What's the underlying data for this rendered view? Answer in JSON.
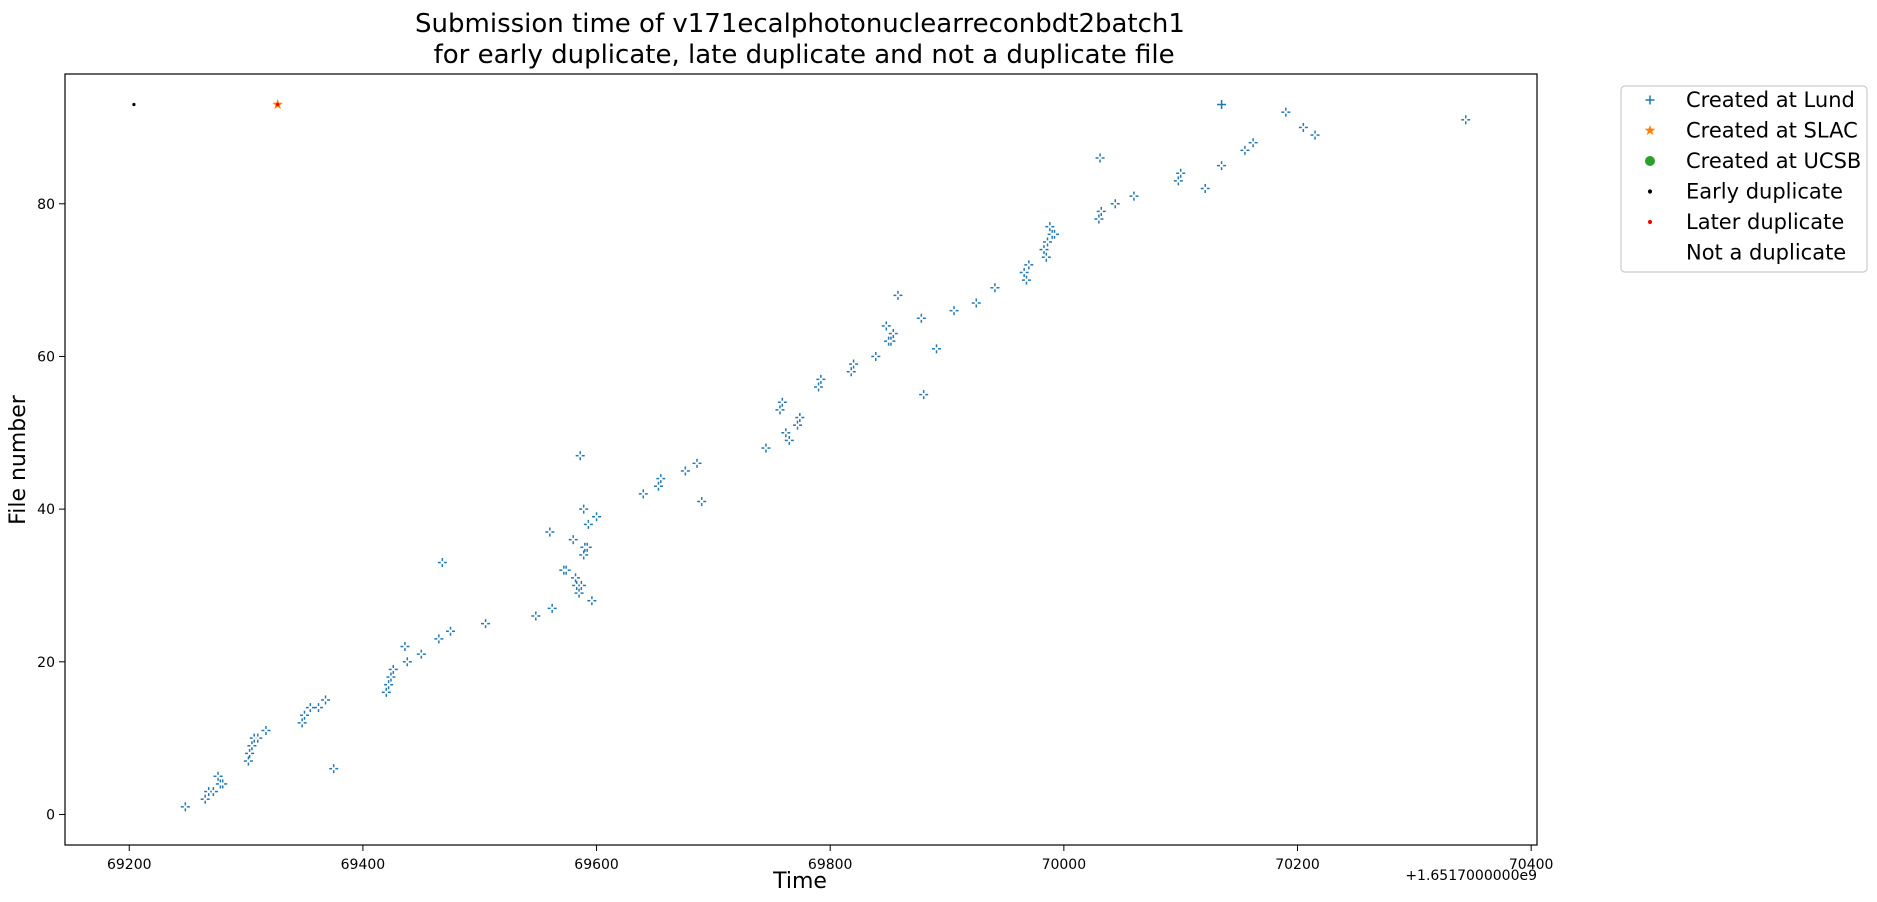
{
  "chart_data": {
    "type": "scatter",
    "title_line1": "Submission time of v171ecalphotonuclearreconbdt2batch1",
    "title_line2": " for early duplicate, late duplicate and not a duplicate file",
    "xlabel": "Time",
    "ylabel": "File number",
    "x_offset_label": "+1.6517000000e9",
    "xlim": [
      69145,
      70405
    ],
    "ylim": [
      -4,
      97
    ],
    "x_ticks": [
      69200,
      69400,
      69600,
      69800,
      70000,
      70200,
      70400
    ],
    "x_tick_labels": [
      "69200",
      "69400",
      "69600",
      "69800",
      "70000",
      "70200",
      "70400"
    ],
    "y_ticks": [
      0,
      20,
      40,
      60,
      80
    ],
    "y_tick_labels": [
      "0",
      "20",
      "40",
      "60",
      "80"
    ],
    "legend_position": "outside-top-right",
    "legend": [
      {
        "label": "Created at Lund",
        "marker": "plus",
        "color": "#1f77b4"
      },
      {
        "label": "Created at SLAC",
        "marker": "star",
        "color": "#ff7f0e"
      },
      {
        "label": "Created at UCSB",
        "marker": "circle",
        "color": "#2ca02c"
      },
      {
        "label": "Early duplicate",
        "marker": "dot",
        "color": "#000000"
      },
      {
        "label": "Later duplicate",
        "marker": "dot",
        "color": "#ff0000"
      },
      {
        "label": "Not a duplicate",
        "marker": "dot",
        "color": "#ffffff"
      }
    ],
    "series": [
      {
        "name": "Created at Lund",
        "marker": "plus",
        "color": "#1f77b4",
        "points": [
          [
            69248,
            1
          ],
          [
            69265,
            2
          ],
          [
            69268,
            3
          ],
          [
            69272,
            3
          ],
          [
            69276,
            5
          ],
          [
            69278,
            4
          ],
          [
            69280,
            4
          ],
          [
            69302,
            7
          ],
          [
            69303,
            8
          ],
          [
            69305,
            9
          ],
          [
            69307,
            10
          ],
          [
            69310,
            10
          ],
          [
            69317,
            11
          ],
          [
            69348,
            12
          ],
          [
            69350,
            13
          ],
          [
            69355,
            14
          ],
          [
            69362,
            14
          ],
          [
            69368,
            15
          ],
          [
            69375,
            6
          ],
          [
            69420,
            16
          ],
          [
            69422,
            17
          ],
          [
            69424,
            18
          ],
          [
            69426,
            19
          ],
          [
            69436,
            22
          ],
          [
            69438,
            20
          ],
          [
            69450,
            21
          ],
          [
            69465,
            23
          ],
          [
            69468,
            33
          ],
          [
            69475,
            24
          ],
          [
            69505,
            25
          ],
          [
            69548,
            26
          ],
          [
            69560,
            37
          ],
          [
            69562,
            27
          ],
          [
            69572,
            32
          ],
          [
            69574,
            32
          ],
          [
            69580,
            36
          ],
          [
            69582,
            31
          ],
          [
            69583,
            30
          ],
          [
            69585,
            29
          ],
          [
            69586,
            47
          ],
          [
            69587,
            30
          ],
          [
            69589,
            40
          ],
          [
            69589,
            34
          ],
          [
            69590,
            35
          ],
          [
            69592,
            35
          ],
          [
            69593,
            38
          ],
          [
            69596,
            28
          ],
          [
            69600,
            39
          ],
          [
            69640,
            42
          ],
          [
            69653,
            43
          ],
          [
            69655,
            44
          ],
          [
            69676,
            45
          ],
          [
            69686,
            46
          ],
          [
            69690,
            41
          ],
          [
            69745,
            48
          ],
          [
            69757,
            53
          ],
          [
            69759,
            54
          ],
          [
            69762,
            50
          ],
          [
            69765,
            49
          ],
          [
            69772,
            51
          ],
          [
            69774,
            52
          ],
          [
            69790,
            56
          ],
          [
            69792,
            57
          ],
          [
            69818,
            58
          ],
          [
            69820,
            59
          ],
          [
            69839,
            60
          ],
          [
            69848,
            64
          ],
          [
            69850,
            62
          ],
          [
            69852,
            62
          ],
          [
            69854,
            63
          ],
          [
            69858,
            68
          ],
          [
            69878,
            65
          ],
          [
            69880,
            55
          ],
          [
            69891,
            61
          ],
          [
            69906,
            66
          ],
          [
            69925,
            67
          ],
          [
            69941,
            69
          ],
          [
            69966,
            71
          ],
          [
            69968,
            70
          ],
          [
            69970,
            72
          ],
          [
            69983,
            74
          ],
          [
            69985,
            73
          ],
          [
            69986,
            75
          ],
          [
            69988,
            77
          ],
          [
            69990,
            76
          ],
          [
            69992,
            76
          ],
          [
            70030,
            78
          ],
          [
            70031,
            86
          ],
          [
            70032,
            79
          ],
          [
            70044,
            80
          ],
          [
            70060,
            81
          ],
          [
            70098,
            83
          ],
          [
            70100,
            84
          ],
          [
            70121,
            82
          ],
          [
            70135,
            85
          ],
          [
            70155,
            87
          ],
          [
            70162,
            88
          ],
          [
            70190,
            92
          ],
          [
            70205,
            90
          ],
          [
            70215,
            89
          ],
          [
            70344,
            91
          ],
          [
            70135,
            93
          ]
        ]
      },
      {
        "name": "Created at SLAC",
        "marker": "star",
        "color": "#ff7f0e",
        "points": [
          [
            69327,
            93
          ]
        ]
      },
      {
        "name": "Early duplicate",
        "marker": "dot",
        "color": "#000000",
        "points": [
          [
            69204,
            93
          ]
        ]
      },
      {
        "name": "Later duplicate",
        "marker": "dot",
        "color": "#ff0000",
        "points": [
          [
            69327,
            93
          ]
        ]
      },
      {
        "name": "Not a duplicate",
        "marker": "dot",
        "color": "#ffffff",
        "points": [
          [
            69248,
            1
          ],
          [
            69265,
            2
          ],
          [
            69268,
            3
          ],
          [
            69272,
            3
          ],
          [
            69276,
            5
          ],
          [
            69278,
            4
          ],
          [
            69280,
            4
          ],
          [
            69302,
            7
          ],
          [
            69303,
            8
          ],
          [
            69305,
            9
          ],
          [
            69307,
            10
          ],
          [
            69310,
            10
          ],
          [
            69317,
            11
          ],
          [
            69348,
            12
          ],
          [
            69350,
            13
          ],
          [
            69355,
            14
          ],
          [
            69362,
            14
          ],
          [
            69368,
            15
          ],
          [
            69375,
            6
          ],
          [
            69420,
            16
          ],
          [
            69422,
            17
          ],
          [
            69424,
            18
          ],
          [
            69426,
            19
          ],
          [
            69436,
            22
          ],
          [
            69438,
            20
          ],
          [
            69450,
            21
          ],
          [
            69465,
            23
          ],
          [
            69468,
            33
          ],
          [
            69475,
            24
          ],
          [
            69505,
            25
          ],
          [
            69548,
            26
          ],
          [
            69560,
            37
          ],
          [
            69562,
            27
          ],
          [
            69572,
            32
          ],
          [
            69574,
            32
          ],
          [
            69580,
            36
          ],
          [
            69582,
            31
          ],
          [
            69583,
            30
          ],
          [
            69585,
            29
          ],
          [
            69586,
            47
          ],
          [
            69587,
            30
          ],
          [
            69589,
            40
          ],
          [
            69589,
            34
          ],
          [
            69590,
            35
          ],
          [
            69592,
            35
          ],
          [
            69593,
            38
          ],
          [
            69596,
            28
          ],
          [
            69600,
            39
          ],
          [
            69640,
            42
          ],
          [
            69653,
            43
          ],
          [
            69655,
            44
          ],
          [
            69676,
            45
          ],
          [
            69686,
            46
          ],
          [
            69690,
            41
          ],
          [
            69745,
            48
          ],
          [
            69757,
            53
          ],
          [
            69759,
            54
          ],
          [
            69762,
            50
          ],
          [
            69765,
            49
          ],
          [
            69772,
            51
          ],
          [
            69774,
            52
          ],
          [
            69790,
            56
          ],
          [
            69792,
            57
          ],
          [
            69818,
            58
          ],
          [
            69820,
            59
          ],
          [
            69839,
            60
          ],
          [
            69848,
            64
          ],
          [
            69850,
            62
          ],
          [
            69852,
            62
          ],
          [
            69854,
            63
          ],
          [
            69858,
            68
          ],
          [
            69878,
            65
          ],
          [
            69880,
            55
          ],
          [
            69891,
            61
          ],
          [
            69906,
            66
          ],
          [
            69925,
            67
          ],
          [
            69941,
            69
          ],
          [
            69966,
            71
          ],
          [
            69968,
            70
          ],
          [
            69970,
            72
          ],
          [
            69983,
            74
          ],
          [
            69985,
            73
          ],
          [
            69986,
            75
          ],
          [
            69988,
            77
          ],
          [
            69990,
            76
          ],
          [
            69992,
            76
          ],
          [
            70030,
            78
          ],
          [
            70031,
            86
          ],
          [
            70032,
            79
          ],
          [
            70044,
            80
          ],
          [
            70060,
            81
          ],
          [
            70098,
            83
          ],
          [
            70100,
            84
          ],
          [
            70121,
            82
          ],
          [
            70135,
            85
          ],
          [
            70155,
            87
          ],
          [
            70162,
            88
          ],
          [
            70190,
            92
          ],
          [
            70205,
            90
          ],
          [
            70215,
            89
          ],
          [
            70344,
            91
          ]
        ]
      }
    ]
  }
}
